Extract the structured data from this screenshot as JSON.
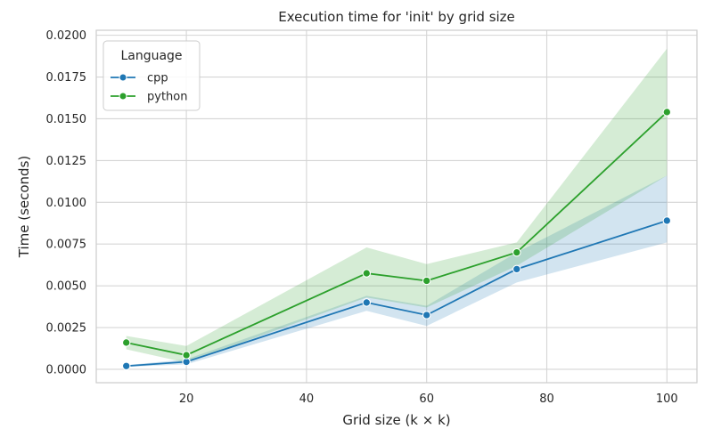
{
  "chart_data": {
    "type": "line",
    "title": "Execution time for 'init' by grid size",
    "xlabel": "Grid size (k × k)",
    "ylabel": "Time (seconds)",
    "xlim": [
      5,
      105
    ],
    "ylim": [
      -0.0008,
      0.0203
    ],
    "x_ticks": [
      20,
      40,
      60,
      80,
      100
    ],
    "y_ticks": [
      0.0,
      0.0025,
      0.005,
      0.0075,
      0.01,
      0.0125,
      0.015,
      0.0175,
      0.02
    ],
    "x_tick_labels": [
      "20",
      "40",
      "60",
      "80",
      "100"
    ],
    "y_tick_labels": [
      "0.0000",
      "0.0025",
      "0.0050",
      "0.0075",
      "0.0100",
      "0.0125",
      "0.0150",
      "0.0175",
      "0.0200"
    ],
    "grid": true,
    "legend": {
      "title": "Language",
      "placement": "top-left"
    },
    "x": [
      10,
      20,
      50,
      60,
      75,
      100
    ],
    "series": [
      {
        "name": "cpp",
        "color": "#1f77b4",
        "values": [
          0.0002,
          0.00045,
          0.004,
          0.00325,
          0.006,
          0.0089
        ],
        "ci_low": [
          0.00015,
          0.0003,
          0.0035,
          0.0026,
          0.0052,
          0.0076
        ],
        "ci_high": [
          0.00025,
          0.0006,
          0.0044,
          0.0038,
          0.007,
          0.0116
        ]
      },
      {
        "name": "python",
        "color": "#2ca02c",
        "values": [
          0.0016,
          0.00085,
          0.00575,
          0.0053,
          0.007,
          0.0154
        ],
        "ci_low": [
          0.0012,
          0.0004,
          0.0043,
          0.0037,
          0.0062,
          0.0116
        ],
        "ci_high": [
          0.002,
          0.0014,
          0.0073,
          0.0063,
          0.0076,
          0.0192
        ]
      }
    ]
  }
}
